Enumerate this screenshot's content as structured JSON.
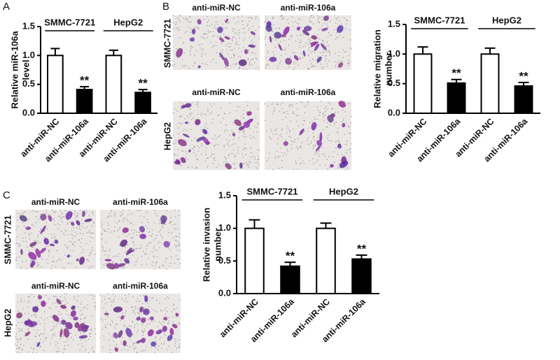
{
  "panel_labels": [
    "A",
    "B",
    "C"
  ],
  "micrographs": [
    {
      "rows": [
        {
          "label": "SMMC-7721",
          "columns": [
            "anti-miR-NC",
            "anti-miR-106a"
          ]
        },
        {
          "label": "HepG2",
          "columns": [
            "anti-miR-NC",
            "anti-miR-106a"
          ]
        }
      ]
    },
    {
      "rows": [
        {
          "label": "SMMC-7721",
          "columns": [
            "anti-miR-NC",
            "anti-miR-106a"
          ]
        },
        {
          "label": "HepG2",
          "columns": [
            "anti-miR-NC",
            "anti-miR-106a"
          ]
        }
      ]
    }
  ],
  "chart_data": [
    {
      "type": "bar",
      "ylabel": [
        "Relative miR-106a",
        "level"
      ],
      "categories": [
        "anti-miR-NC",
        "anti-miR-106a",
        "anti-miR-NC",
        "anti-miR-106a"
      ],
      "values": [
        1.0,
        0.41,
        1.0,
        0.36
      ],
      "errors": [
        0.12,
        0.05,
        0.09,
        0.05
      ],
      "colors": [
        "#ffffff",
        "#000000",
        "#ffffff",
        "#000000"
      ],
      "annotations": [
        null,
        "**",
        null,
        "**"
      ],
      "groups": [
        "SMMC-7721",
        "HepG2"
      ],
      "ylim": [
        0,
        1.5
      ],
      "yticks": [
        {
          "value": 0,
          "label": "0.0"
        },
        0.5,
        {
          "value": 1,
          "label": "1.0"
        },
        1.5
      ]
    },
    {
      "type": "bar",
      "ylabel": [
        "Relative migration",
        "number"
      ],
      "categories": [
        "anti-miR-NC",
        "anti-miR-106a",
        "anti-miR-NC",
        "anti-miR-106a"
      ],
      "values": [
        1.0,
        0.51,
        1.0,
        0.46
      ],
      "errors": [
        0.12,
        0.06,
        0.1,
        0.06
      ],
      "colors": [
        "#ffffff",
        "#000000",
        "#ffffff",
        "#000000"
      ],
      "annotations": [
        null,
        "**",
        null,
        "**"
      ],
      "groups": [
        "SMMC-7721",
        "HepG2"
      ],
      "ylim": [
        0,
        1.5
      ],
      "yticks": [
        {
          "value": 0,
          "label": "0.0"
        },
        0.5,
        {
          "value": 1,
          "label": "1.0"
        },
        1.5
      ]
    },
    {
      "type": "bar",
      "ylabel": [
        "Relative invasion",
        "number"
      ],
      "categories": [
        "anti-miR-NC",
        "anti-miR-106a",
        "anti-miR-NC",
        "anti-miR-106a"
      ],
      "values": [
        1.0,
        0.42,
        1.0,
        0.53
      ],
      "errors": [
        0.13,
        0.06,
        0.08,
        0.06
      ],
      "colors": [
        "#ffffff",
        "#000000",
        "#ffffff",
        "#000000"
      ],
      "annotations": [
        null,
        "**",
        null,
        "**"
      ],
      "groups": [
        "SMMC-7721",
        "HepG2"
      ],
      "ylim": [
        0,
        1.5
      ],
      "yticks": [
        {
          "value": 0,
          "label": "0.0"
        },
        0.5,
        {
          "value": 1,
          "label": "1.0"
        },
        1.5
      ]
    }
  ]
}
